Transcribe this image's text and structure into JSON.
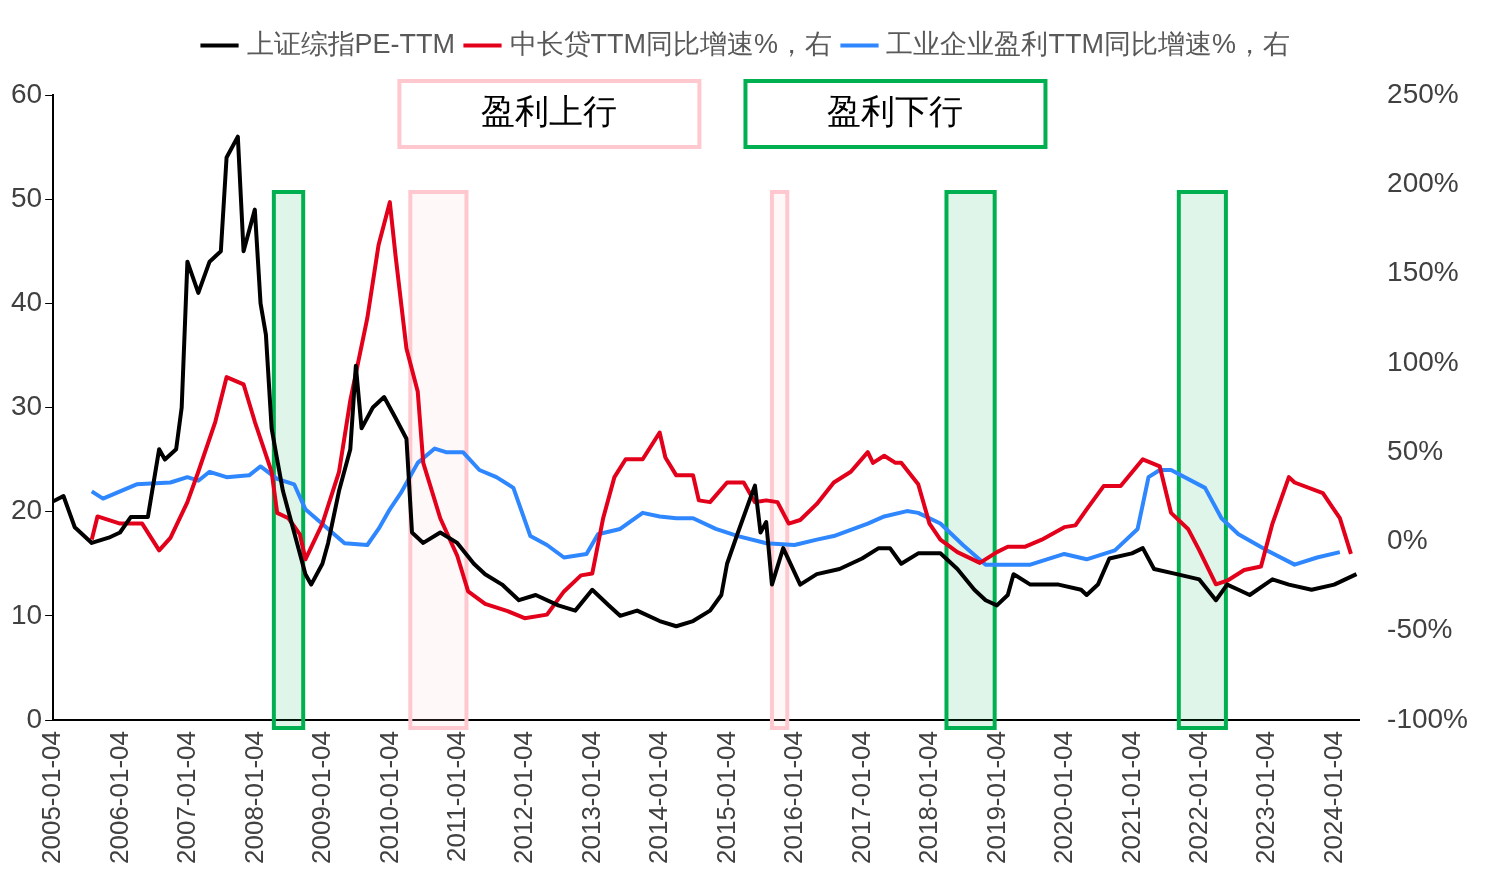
{
  "chart_data": {
    "type": "line",
    "xlim": [
      "2005-01-04",
      "2024-05-15"
    ],
    "xticks": [
      "2005-01-04",
      "2006-01-04",
      "2007-01-04",
      "2008-01-04",
      "2009-01-04",
      "2010-01-04",
      "2011-01-04",
      "2012-01-04",
      "2013-01-04",
      "2014-01-04",
      "2015-01-04",
      "2016-01-04",
      "2017-01-04",
      "2018-01-04",
      "2019-01-04",
      "2020-01-04",
      "2021-01-04",
      "2022-01-04",
      "2023-01-04",
      "2024-01-04"
    ],
    "ylim": [
      0,
      60
    ],
    "yticks": [
      0,
      10,
      20,
      30,
      40,
      50,
      60
    ],
    "y2lim": [
      -100,
      250
    ],
    "y2ticks": [
      {
        "value": -100,
        "label": "-100%"
      },
      {
        "value": -50,
        "label": "-50%"
      },
      {
        "value": 0,
        "label": "0%"
      },
      {
        "value": 50,
        "label": "50%"
      },
      {
        "value": 100,
        "label": "100%"
      },
      {
        "value": 150,
        "label": "150%"
      },
      {
        "value": 200,
        "label": "200%"
      },
      {
        "value": 250,
        "label": "250%"
      }
    ],
    "legend": "top",
    "grid": false,
    "annotations": [
      "盈利上行",
      "盈利下行"
    ],
    "bands": [
      {
        "axis": "x",
        "from": "2010-04-22",
        "to": "2011-02-20",
        "color": "#ffc7ce"
      },
      {
        "axis": "x",
        "from": "2015-09-01",
        "to": "2015-11-23",
        "color": "#ffc7ce"
      },
      {
        "axis": "x",
        "from": "2008-04-13",
        "to": "2008-09-19",
        "color": "#00b050"
      },
      {
        "axis": "x",
        "from": "2018-04-03",
        "to": "2018-12-20",
        "color": "#00b050"
      },
      {
        "axis": "x",
        "from": "2021-09-12",
        "to": "2022-05-25",
        "color": "#00b050"
      }
    ],
    "series": [
      {
        "name": "上证综指PE-TTM",
        "color": "#000000",
        "x": [
          "2005-01-05",
          "2005-03",
          "2005-05",
          "2005-08",
          "2005-11",
          "2006-01",
          "2006-03",
          "2006-06",
          "2006-08",
          "2006-09",
          "2006-11",
          "2006-12",
          "2007-01",
          "2007-03",
          "2007-05",
          "2007-07",
          "2007-08",
          "2007-10",
          "2007-11",
          "2008-01",
          "2008-02",
          "2008-03",
          "2008-04",
          "2008-05",
          "2008-06",
          "2008-08",
          "2008-10",
          "2008-11",
          "2009-01",
          "2009-02",
          "2009-04",
          "2009-06",
          "2009-07",
          "2009-08",
          "2009-10",
          "2009-12",
          "2010-02",
          "2010-04",
          "2010-05",
          "2010-07",
          "2010-10",
          "2011-01",
          "2011-04",
          "2011-06",
          "2011-09",
          "2011-12",
          "2012-03",
          "2012-07",
          "2012-10",
          "2013-01",
          "2013-04",
          "2013-06",
          "2013-09",
          "2014-01",
          "2014-04",
          "2014-07",
          "2014-10",
          "2014-12",
          "2015-01",
          "2015-03",
          "2015-05",
          "2015-06",
          "2015-07",
          "2015-08",
          "2015-09",
          "2015-11",
          "2016-02",
          "2016-05",
          "2016-09",
          "2017-01",
          "2017-04",
          "2017-06",
          "2017-08",
          "2017-11",
          "2018-03",
          "2018-06",
          "2018-09",
          "2018-11",
          "2019-01",
          "2019-03",
          "2019-04",
          "2019-07",
          "2019-12",
          "2020-04",
          "2020-05",
          "2020-07",
          "2020-09",
          "2021-01",
          "2021-03",
          "2021-05",
          "2021-09",
          "2022-01",
          "2022-04",
          "2022-06",
          "2022-08",
          "2022-10",
          "2023-02",
          "2023-05",
          "2023-09",
          "2024-01",
          "2024-05"
        ],
        "values": [
          21,
          21.5,
          18.5,
          17,
          17.5,
          18,
          19.5,
          19.5,
          26,
          25,
          26,
          30,
          44,
          41,
          44,
          45,
          54,
          56,
          45,
          49,
          40,
          37,
          28,
          25,
          22,
          18,
          14,
          13,
          15,
          17,
          22,
          26,
          34,
          28,
          30,
          31,
          29,
          27,
          18,
          17,
          18,
          17,
          15,
          14,
          13,
          11.5,
          12,
          11,
          10.5,
          12.5,
          11,
          10,
          10.5,
          9.5,
          9,
          9.5,
          10.5,
          12,
          15,
          18,
          21,
          22.5,
          18,
          19,
          13,
          16.5,
          13,
          14,
          14.5,
          15.5,
          16.5,
          16.5,
          15,
          16,
          16,
          14.5,
          12.5,
          11.5,
          11,
          12,
          14,
          13,
          13,
          12.5,
          12,
          13,
          15.5,
          16,
          16.5,
          14.5,
          14,
          13.5,
          11.5,
          13,
          12.5,
          12,
          13.5,
          13,
          12.5,
          13,
          14
        ]
      },
      {
        "name": "中长贷TTM同比增速%，右",
        "color": "#e3001b",
        "axis": "y2",
        "x": [
          "2005-08",
          "2005-09",
          "2006-01",
          "2006-05",
          "2006-08",
          "2006-10",
          "2007-01",
          "2007-03",
          "2007-06",
          "2007-08",
          "2007-11",
          "2008-01",
          "2008-04",
          "2008-05",
          "2008-07",
          "2008-09",
          "2008-10",
          "2009-01",
          "2009-04",
          "2009-06",
          "2009-09",
          "2009-11",
          "2010-01",
          "2010-02",
          "2010-04",
          "2010-06",
          "2010-07",
          "2010-10",
          "2011-01",
          "2011-03",
          "2011-06",
          "2011-10",
          "2012-01",
          "2012-05",
          "2012-08",
          "2012-11",
          "2013-01",
          "2013-03",
          "2013-05",
          "2013-07",
          "2013-10",
          "2014-01",
          "2014-02",
          "2014-04",
          "2014-07",
          "2014-08",
          "2014-10",
          "2015-01",
          "2015-04",
          "2015-06",
          "2015-08",
          "2015-10",
          "2015-12",
          "2016-02",
          "2016-05",
          "2016-08",
          "2016-11",
          "2017-02",
          "2017-03",
          "2017-05",
          "2017-07",
          "2017-08",
          "2017-11",
          "2018-01",
          "2018-03",
          "2018-06",
          "2018-10",
          "2019-01",
          "2019-03",
          "2019-06",
          "2019-09",
          "2020-01",
          "2020-03",
          "2020-05",
          "2020-08",
          "2020-11",
          "2021-03",
          "2021-06",
          "2021-08",
          "2021-11",
          "2022-01",
          "2022-04",
          "2022-06",
          "2022-09",
          "2022-12",
          "2023-02",
          "2023-05",
          "2023-06",
          "2023-11",
          "2024-02",
          "2024-04"
        ],
        "values": [
          1,
          14,
          10,
          10,
          -5,
          2,
          22,
          39,
          67,
          92,
          88,
          67,
          39,
          16,
          13,
          4,
          -10,
          10,
          39,
          79,
          125,
          166,
          190,
          160,
          108,
          84,
          44,
          13,
          -8,
          -28,
          -35,
          -39,
          -43,
          -41,
          -28,
          -19,
          -18,
          13,
          36,
          46,
          46,
          61,
          47,
          37,
          37,
          23,
          22,
          33,
          33,
          22,
          23,
          22,
          10,
          12,
          21,
          33,
          39,
          50,
          44,
          48,
          44,
          44,
          32,
          10,
          1,
          -6,
          -12,
          -6,
          -3,
          -3,
          1,
          8,
          9,
          18,
          31,
          31,
          46,
          42,
          16,
          7,
          -5,
          -24,
          -22,
          -16,
          -14,
          10,
          36,
          33,
          27,
          13,
          -7
        ]
      },
      {
        "name": "工业企业盈利TTM同比增速%，右",
        "color": "#2f87ff",
        "axis": "y2",
        "x": [
          "2005-08",
          "2005-10",
          "2006-04",
          "2006-10",
          "2007-01",
          "2007-03",
          "2007-05",
          "2007-08",
          "2007-12",
          "2008-02",
          "2008-05",
          "2008-08",
          "2008-10",
          "2009-02",
          "2009-05",
          "2009-09",
          "2009-11",
          "2010-01",
          "2010-03",
          "2010-06",
          "2010-09",
          "2010-11",
          "2011-02",
          "2011-05",
          "2011-08",
          "2011-11",
          "2012-02",
          "2012-05",
          "2012-08",
          "2012-12",
          "2013-02",
          "2013-06",
          "2013-10",
          "2014-01",
          "2014-04",
          "2014-07",
          "2014-11",
          "2015-03",
          "2015-08",
          "2016-01",
          "2016-05",
          "2016-08",
          "2017-02",
          "2017-05",
          "2017-09",
          "2017-11",
          "2018-03",
          "2018-07",
          "2018-11",
          "2019-03",
          "2019-07",
          "2020-01",
          "2020-05",
          "2020-10",
          "2021-02",
          "2021-04",
          "2021-06",
          "2021-08",
          "2022-02",
          "2022-05",
          "2022-08",
          "2023-01",
          "2023-06",
          "2023-10",
          "2024-02"
        ],
        "values": [
          28,
          24,
          32,
          33,
          36,
          34,
          39,
          36,
          37,
          42,
          35,
          32,
          18,
          7,
          -1,
          -2,
          7,
          18,
          27,
          44,
          52,
          50,
          50,
          40,
          36,
          30,
          3,
          -2,
          -9,
          -7,
          4,
          7,
          16,
          14,
          13,
          13,
          7,
          3,
          -1,
          -2,
          1,
          3,
          10,
          14,
          17,
          16,
          10,
          -2,
          -13,
          -13,
          -13,
          -7,
          -10,
          -5,
          7,
          36,
          40,
          40,
          30,
          13,
          4,
          -5,
          -13,
          -9,
          -6
        ]
      }
    ]
  }
}
